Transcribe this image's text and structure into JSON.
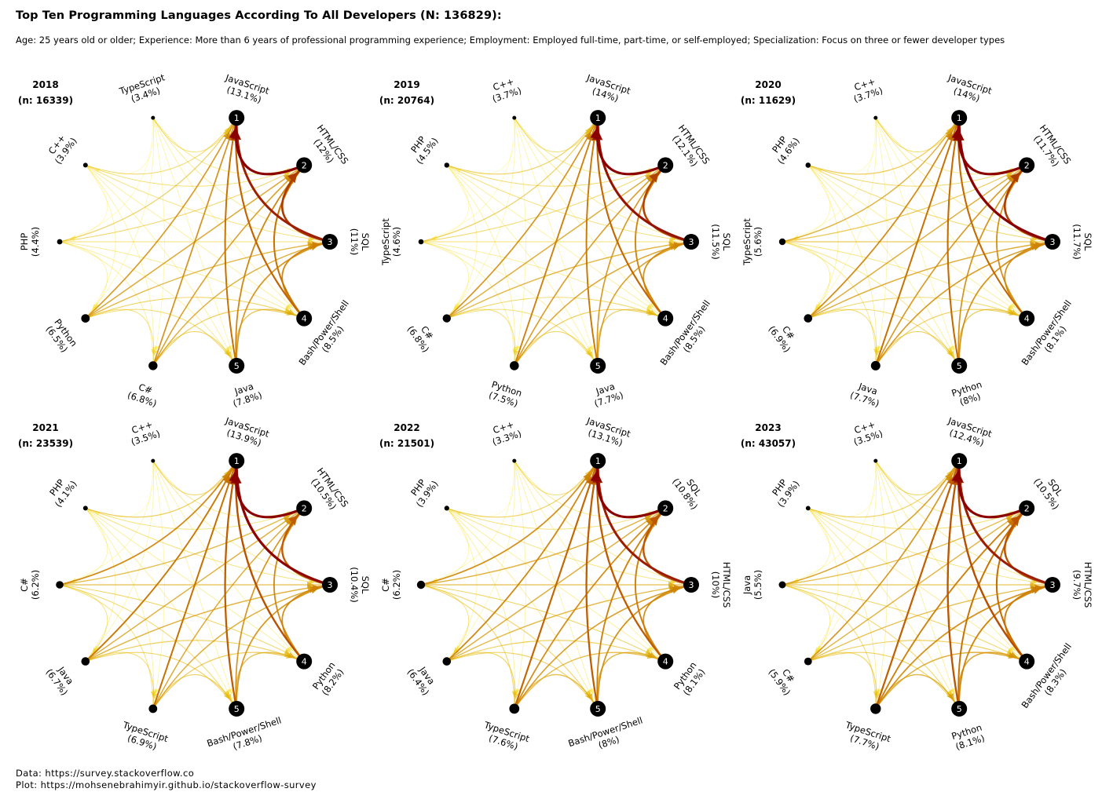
{
  "title": "Top Ten Programming Languages According To  All Developers (N: 136829):",
  "subtitle": "Age: 25 years old or older; Experience: More than 6 years of professional programming experience; Employment: Employed full-time, part-time, or self-employed; Specialization: Focus on three or fewer developer types",
  "caption": {
    "data": "Data: https://survey.stackoverflow.co",
    "plot": "Plot: https://mohsenebrahimyir.github.io/stackoverflow-survey"
  },
  "colors": {
    "strong": "#8b0000",
    "mid": "#cc8800",
    "weak": "#ffe000",
    "node": "#000000"
  },
  "chart_data": [
    {
      "type": "network",
      "year": "2018",
      "n_label": "(n: 16339)",
      "nodes": [
        {
          "name": "JavaScript",
          "pct": "13.1%",
          "rank": 1
        },
        {
          "name": "HTML/CSS",
          "pct": "12%",
          "rank": 2
        },
        {
          "name": "SQL",
          "pct": "11%",
          "rank": 3
        },
        {
          "name": "Bash/Power/Shell",
          "pct": "8.5%",
          "rank": 4
        },
        {
          "name": "Java",
          "pct": "7.8%",
          "rank": 5
        },
        {
          "name": "C#",
          "pct": "6.8%",
          "rank": 6
        },
        {
          "name": "Python",
          "pct": "6.5%",
          "rank": 7
        },
        {
          "name": "PHP",
          "pct": "4.4%",
          "rank": 8
        },
        {
          "name": "C++",
          "pct": "3.9%",
          "rank": 9
        },
        {
          "name": "TypeScript",
          "pct": "3.4%",
          "rank": 10
        }
      ]
    },
    {
      "type": "network",
      "year": "2019",
      "n_label": "(n: 20764)",
      "nodes": [
        {
          "name": "JavaScript",
          "pct": "14%",
          "rank": 1
        },
        {
          "name": "HTML/CSS",
          "pct": "12.1%",
          "rank": 2
        },
        {
          "name": "SQL",
          "pct": "11.5%",
          "rank": 3
        },
        {
          "name": "Bash/Power/Shell",
          "pct": "8.5%",
          "rank": 4
        },
        {
          "name": "Java",
          "pct": "7.7%",
          "rank": 5
        },
        {
          "name": "Python",
          "pct": "7.5%",
          "rank": 6
        },
        {
          "name": "C#",
          "pct": "6.8%",
          "rank": 7
        },
        {
          "name": "TypeScript",
          "pct": "4.6%",
          "rank": 8
        },
        {
          "name": "PHP",
          "pct": "4.5%",
          "rank": 9
        },
        {
          "name": "C++",
          "pct": "3.7%",
          "rank": 10
        }
      ]
    },
    {
      "type": "network",
      "year": "2020",
      "n_label": "(n: 11629)",
      "nodes": [
        {
          "name": "JavaScript",
          "pct": "14%",
          "rank": 1
        },
        {
          "name": "HTML/CSS",
          "pct": "11.7%",
          "rank": 2
        },
        {
          "name": "SQL",
          "pct": "11.7%",
          "rank": 3
        },
        {
          "name": "Bash/Power/Shell",
          "pct": "8.1%",
          "rank": 4
        },
        {
          "name": "Python",
          "pct": "8%",
          "rank": 5
        },
        {
          "name": "Java",
          "pct": "7.7%",
          "rank": 6
        },
        {
          "name": "C#",
          "pct": "6.9%",
          "rank": 7
        },
        {
          "name": "TypeScript",
          "pct": "5.6%",
          "rank": 8
        },
        {
          "name": "PHP",
          "pct": "4.6%",
          "rank": 9
        },
        {
          "name": "C++",
          "pct": "3.7%",
          "rank": 10
        }
      ]
    },
    {
      "type": "network",
      "year": "2021",
      "n_label": "(n: 23539)",
      "nodes": [
        {
          "name": "JavaScript",
          "pct": "13.9%",
          "rank": 1
        },
        {
          "name": "HTML/CSS",
          "pct": "10.5%",
          "rank": 2
        },
        {
          "name": "SQL",
          "pct": "10.4%",
          "rank": 3
        },
        {
          "name": "Python",
          "pct": "8.2%",
          "rank": 4
        },
        {
          "name": "Bash/Power/Shell",
          "pct": "7.8%",
          "rank": 5
        },
        {
          "name": "TypeScript",
          "pct": "6.9%",
          "rank": 6
        },
        {
          "name": "Java",
          "pct": "6.7%",
          "rank": 7
        },
        {
          "name": "C#",
          "pct": "6.2%",
          "rank": 8
        },
        {
          "name": "PHP",
          "pct": "4.1%",
          "rank": 9
        },
        {
          "name": "C++",
          "pct": "3.5%",
          "rank": 10
        }
      ]
    },
    {
      "type": "network",
      "year": "2022",
      "n_label": "(n: 21501)",
      "nodes": [
        {
          "name": "JavaScript",
          "pct": "13.1%",
          "rank": 1
        },
        {
          "name": "SQL",
          "pct": "10.8%",
          "rank": 2
        },
        {
          "name": "HTML/CSS",
          "pct": "10%",
          "rank": 3
        },
        {
          "name": "Python",
          "pct": "8.1%",
          "rank": 4
        },
        {
          "name": "Bash/Power/Shell",
          "pct": "8%",
          "rank": 5
        },
        {
          "name": "TypeScript",
          "pct": "7.6%",
          "rank": 6
        },
        {
          "name": "Java",
          "pct": "6.4%",
          "rank": 7
        },
        {
          "name": "C#",
          "pct": "6.2%",
          "rank": 8
        },
        {
          "name": "PHP",
          "pct": "3.9%",
          "rank": 9
        },
        {
          "name": "C++",
          "pct": "3.3%",
          "rank": 10
        }
      ]
    },
    {
      "type": "network",
      "year": "2023",
      "n_label": "(n: 43057)",
      "nodes": [
        {
          "name": "JavaScript",
          "pct": "12.4%",
          "rank": 1
        },
        {
          "name": "SQL",
          "pct": "10.5%",
          "rank": 2
        },
        {
          "name": "HTML/CSS",
          "pct": "9.7%",
          "rank": 3
        },
        {
          "name": "Bash/Power/Shell",
          "pct": "8.3%",
          "rank": 4
        },
        {
          "name": "Python",
          "pct": "8.1%",
          "rank": 5
        },
        {
          "name": "TypeScript",
          "pct": "7.7%",
          "rank": 6
        },
        {
          "name": "C#",
          "pct": "5.9%",
          "rank": 7
        },
        {
          "name": "Java",
          "pct": "5.5%",
          "rank": 8
        },
        {
          "name": "PHP",
          "pct": "3.9%",
          "rank": 9
        },
        {
          "name": "C++",
          "pct": "3.5%",
          "rank": 10
        }
      ]
    }
  ]
}
